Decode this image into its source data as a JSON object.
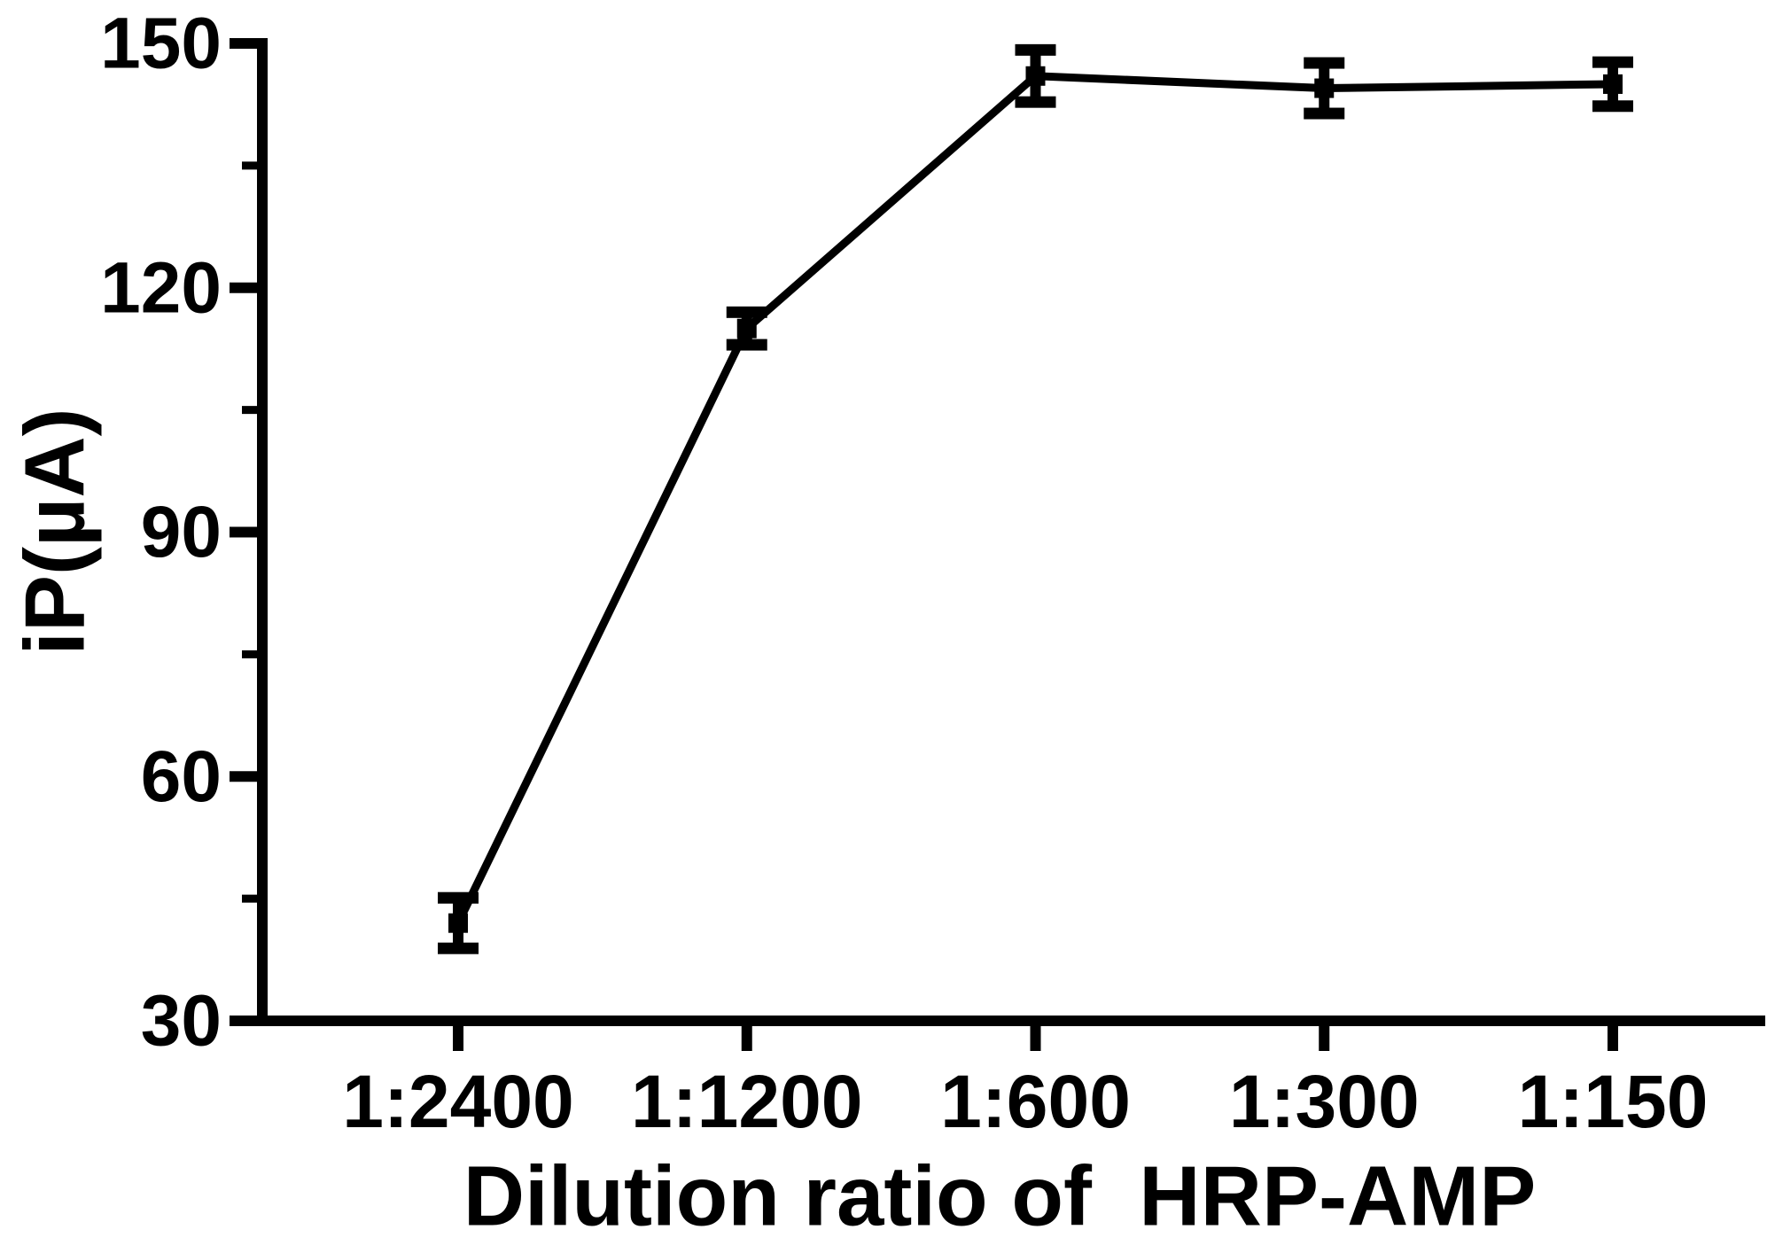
{
  "figure": {
    "background": "#ffffff",
    "ink_color": "#000000"
  },
  "chart_data": {
    "type": "line",
    "title": "",
    "xlabel": "Dilution ratio of  HRP-AMP",
    "ylabel": "iP(µA)",
    "categories": [
      "1:2400",
      "1:1200",
      "1:600",
      "1:300",
      "1:150"
    ],
    "series": [
      {
        "name": "iP",
        "values": [
          42,
          115,
          146,
          144.5,
          145
        ],
        "errors": [
          3.1,
          2.0,
          3.2,
          3.1,
          2.7
        ]
      }
    ],
    "ylim": [
      30,
      150
    ],
    "yticks": [
      30,
      60,
      90,
      120,
      150
    ],
    "yticks_minor": [
      45,
      75,
      105,
      135
    ],
    "grid": false,
    "legend_position": "none",
    "marker": "square",
    "error_caps": true,
    "line_color": "#000000"
  }
}
